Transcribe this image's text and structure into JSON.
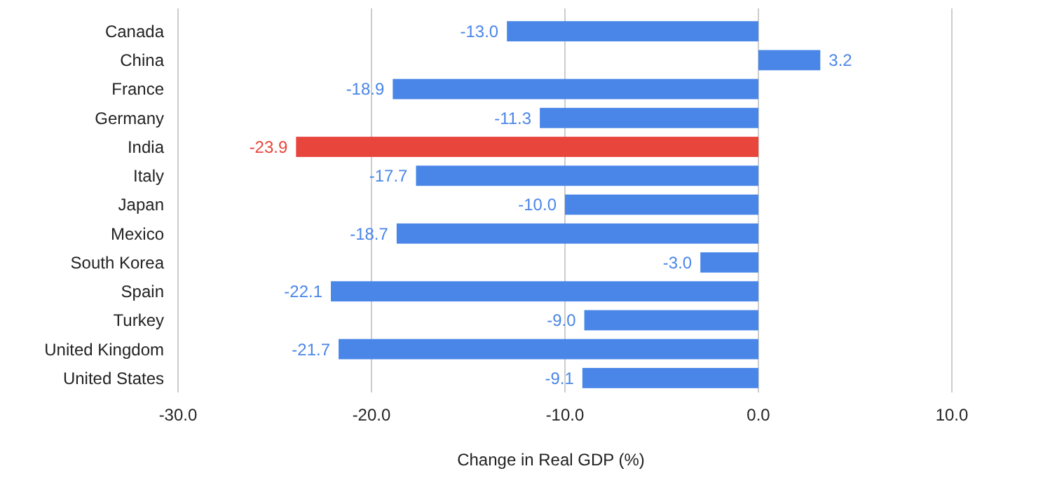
{
  "chart_data": {
    "type": "bar",
    "orientation": "horizontal",
    "xlabel": "Change in Real GDP (%)",
    "categories": [
      "Canada",
      "China",
      "France",
      "Germany",
      "India",
      "Italy",
      "Japan",
      "Mexico",
      "South Korea",
      "Spain",
      "Turkey",
      "United Kingdom",
      "United States"
    ],
    "values": [
      -13.0,
      3.2,
      -18.9,
      -11.3,
      -23.9,
      -17.7,
      -10.0,
      -18.7,
      -3.0,
      -22.1,
      -9.0,
      -21.7,
      -9.1
    ],
    "colors": [
      "#4a86e8",
      "#4a86e8",
      "#4a86e8",
      "#4a86e8",
      "#e8453c",
      "#4a86e8",
      "#4a86e8",
      "#4a86e8",
      "#4a86e8",
      "#4a86e8",
      "#4a86e8",
      "#4a86e8",
      "#4a86e8"
    ],
    "xlim": [
      -30,
      10
    ],
    "xticks": [
      {
        "value": -30,
        "label": "-30.0"
      },
      {
        "value": -20,
        "label": "-20.0"
      },
      {
        "value": -10,
        "label": "-10.0"
      },
      {
        "value": 0,
        "label": "0.0"
      },
      {
        "value": 10,
        "label": "10.0"
      }
    ],
    "value_labels": [
      "-13.0",
      "3.2",
      "-18.9",
      "-11.3",
      "-23.9",
      "-17.7",
      "-10.0",
      "-18.7",
      "-3.0",
      "-22.1",
      "-9.0",
      "-21.7",
      "-9.1"
    ],
    "grid": "x"
  }
}
